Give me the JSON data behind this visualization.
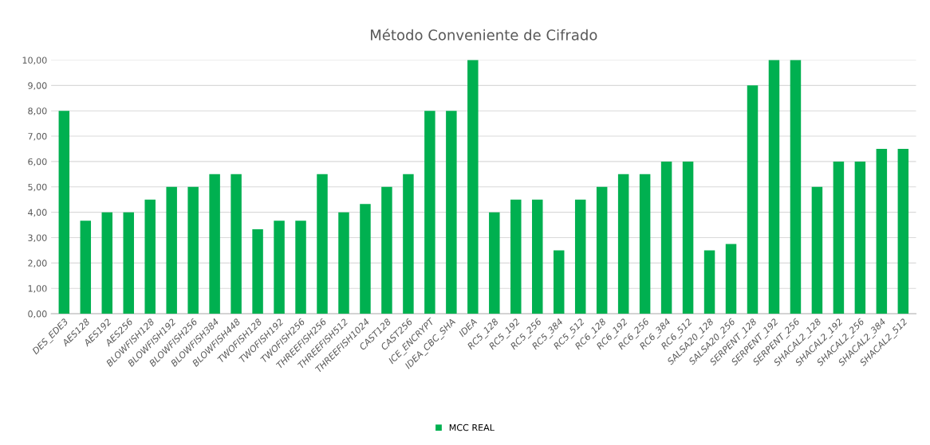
{
  "chart_data": {
    "type": "bar",
    "title": "Método Conveniente de Cifrado",
    "categories": [
      "DES_EDE3",
      "AES128",
      "AES192",
      "AES256",
      "BLOWFISH128",
      "BLOWFISH192",
      "BLOWFISH256",
      "BLOWFISH384",
      "BLOWFISH448",
      "TWOFISH128",
      "TWOFISH192",
      "TWOFISH256",
      "THREEFISH256",
      "THREEFISH512",
      "THREEFISH1024",
      "CAST128",
      "CAST256",
      "ICE_ENCRYPT",
      "IDEA_CBC_SHA",
      "IDEA",
      "RC5_128",
      "RC5_192",
      "RC5_256",
      "RC5_384",
      "RC5_512",
      "RC6_128",
      "RC6_192",
      "RC6_256",
      "RC6_384",
      "RC6_512",
      "SALSA20_128",
      "SALSA20_256",
      "SERPENT_128",
      "SERPENT_192",
      "SERPENT_256",
      "SHACAL2_128",
      "SHACAL2_192",
      "SHACAL2_256",
      "SHACAL2_384",
      "SHACAL2_512"
    ],
    "series": [
      {
        "name": "MCC REAL",
        "color": "#00b050",
        "values": [
          8,
          3.67,
          4,
          4,
          4.5,
          5,
          5,
          5.5,
          5.5,
          3.33,
          3.67,
          3.67,
          5.5,
          4,
          4.33,
          5,
          5.5,
          8,
          8,
          10,
          4,
          4.5,
          4.5,
          2.5,
          4.5,
          5,
          5.5,
          5.5,
          6,
          6,
          2.5,
          2.75,
          9,
          10,
          10,
          5,
          6,
          6,
          6.5,
          6.5
        ]
      }
    ],
    "ylim": [
      0,
      10
    ],
    "yticks": [
      {
        "value": 0,
        "label": "0,00"
      },
      {
        "value": 1,
        "label": "1,00"
      },
      {
        "value": 2,
        "label": "2,00"
      },
      {
        "value": 3,
        "label": "3,00"
      },
      {
        "value": 4,
        "label": "4,00"
      },
      {
        "value": 5,
        "label": "5,00"
      },
      {
        "value": 6,
        "label": "6,00"
      },
      {
        "value": 7,
        "label": "7,00"
      },
      {
        "value": 8,
        "label": "8,00"
      },
      {
        "value": 9,
        "label": "9,00"
      },
      {
        "value": 10,
        "label": "10,00"
      }
    ],
    "grid": "y",
    "legend": "bottom"
  }
}
